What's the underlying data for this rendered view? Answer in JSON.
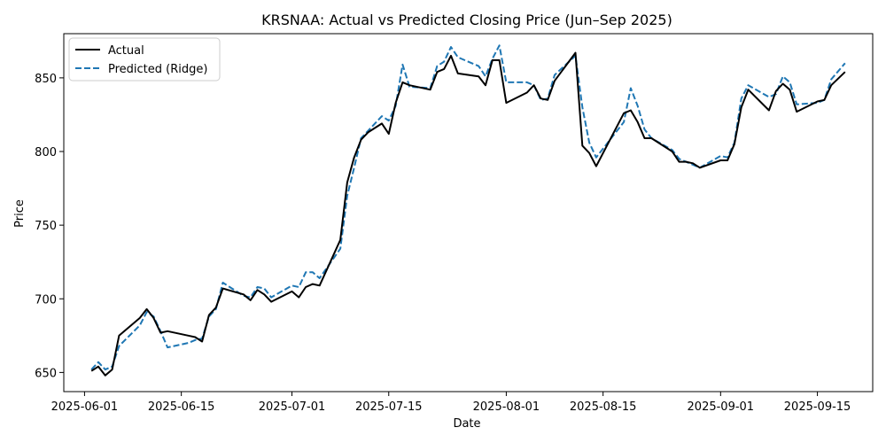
{
  "chart_data": {
    "type": "line",
    "title": "KRSNAA: Actual vs Predicted Closing Price (Jun–Sep 2025)",
    "xlabel": "Date",
    "ylabel": "Price",
    "x_range": [
      "2025-05-29",
      "2025-09-23"
    ],
    "ylim": [
      637,
      880
    ],
    "x_ticks": [
      "2025-06-01",
      "2025-06-15",
      "2025-07-01",
      "2025-07-15",
      "2025-08-01",
      "2025-08-15",
      "2025-09-01",
      "2025-09-15"
    ],
    "y_ticks": [
      650,
      700,
      750,
      800,
      850
    ],
    "grid": false,
    "legend_position": "top-left",
    "series": [
      {
        "name": "Actual",
        "color": "#000000",
        "style": "solid",
        "points": [
          [
            "2025-06-02",
            651
          ],
          [
            "2025-06-03",
            654
          ],
          [
            "2025-06-04",
            648
          ],
          [
            "2025-06-05",
            652
          ],
          [
            "2025-06-06",
            675
          ],
          [
            "2025-06-09",
            687
          ],
          [
            "2025-06-10",
            693
          ],
          [
            "2025-06-11",
            687
          ],
          [
            "2025-06-12",
            677
          ],
          [
            "2025-06-13",
            678
          ],
          [
            "2025-06-16",
            675
          ],
          [
            "2025-06-17",
            674
          ],
          [
            "2025-06-18",
            671
          ],
          [
            "2025-06-19",
            689
          ],
          [
            "2025-06-20",
            694
          ],
          [
            "2025-06-21",
            707
          ],
          [
            "2025-06-24",
            703
          ],
          [
            "2025-06-25",
            699
          ],
          [
            "2025-06-26",
            706
          ],
          [
            "2025-06-27",
            703
          ],
          [
            "2025-06-28",
            698
          ],
          [
            "2025-07-01",
            705
          ],
          [
            "2025-07-02",
            701
          ],
          [
            "2025-07-03",
            708
          ],
          [
            "2025-07-04",
            710
          ],
          [
            "2025-07-05",
            709
          ],
          [
            "2025-07-08",
            740
          ],
          [
            "2025-07-09",
            779
          ],
          [
            "2025-07-10",
            796
          ],
          [
            "2025-07-11",
            808
          ],
          [
            "2025-07-12",
            813
          ],
          [
            "2025-07-14",
            819
          ],
          [
            "2025-07-15",
            812
          ],
          [
            "2025-07-16",
            833
          ],
          [
            "2025-07-17",
            847
          ],
          [
            "2025-07-18",
            845
          ],
          [
            "2025-07-21",
            842
          ],
          [
            "2025-07-22",
            854
          ],
          [
            "2025-07-23",
            856
          ],
          [
            "2025-07-24",
            865
          ],
          [
            "2025-07-25",
            853
          ],
          [
            "2025-07-28",
            851
          ],
          [
            "2025-07-29",
            845
          ],
          [
            "2025-07-30",
            862
          ],
          [
            "2025-07-31",
            862
          ],
          [
            "2025-08-01",
            833
          ],
          [
            "2025-08-04",
            840
          ],
          [
            "2025-08-05",
            845
          ],
          [
            "2025-08-06",
            836
          ],
          [
            "2025-08-07",
            835
          ],
          [
            "2025-08-08",
            848
          ],
          [
            "2025-08-11",
            867
          ],
          [
            "2025-08-12",
            804
          ],
          [
            "2025-08-13",
            799
          ],
          [
            "2025-08-14",
            790
          ],
          [
            "2025-08-18",
            826
          ],
          [
            "2025-08-19",
            828
          ],
          [
            "2025-08-20",
            820
          ],
          [
            "2025-08-21",
            809
          ],
          [
            "2025-08-22",
            809
          ],
          [
            "2025-08-25",
            800
          ],
          [
            "2025-08-26",
            793
          ],
          [
            "2025-08-27",
            793
          ],
          [
            "2025-08-28",
            792
          ],
          [
            "2025-08-29",
            789
          ],
          [
            "2025-09-01",
            794
          ],
          [
            "2025-09-02",
            794
          ],
          [
            "2025-09-03",
            805
          ],
          [
            "2025-09-04",
            830
          ],
          [
            "2025-09-05",
            842
          ],
          [
            "2025-09-08",
            828
          ],
          [
            "2025-09-09",
            841
          ],
          [
            "2025-09-10",
            846
          ],
          [
            "2025-09-11",
            842
          ],
          [
            "2025-09-12",
            827
          ],
          [
            "2025-09-15",
            834
          ],
          [
            "2025-09-16",
            835
          ],
          [
            "2025-09-17",
            845
          ],
          [
            "2025-09-19",
            854
          ]
        ]
      },
      {
        "name": "Predicted (Ridge)",
        "color": "#1f77b4",
        "style": "dashed",
        "points": [
          [
            "2025-06-02",
            652
          ],
          [
            "2025-06-03",
            657
          ],
          [
            "2025-06-04",
            652
          ],
          [
            "2025-06-05",
            654
          ],
          [
            "2025-06-06",
            668
          ],
          [
            "2025-06-09",
            682
          ],
          [
            "2025-06-10",
            691
          ],
          [
            "2025-06-11",
            688
          ],
          [
            "2025-06-12",
            678
          ],
          [
            "2025-06-13",
            667
          ],
          [
            "2025-06-16",
            670
          ],
          [
            "2025-06-17",
            672
          ],
          [
            "2025-06-18",
            673
          ],
          [
            "2025-06-19",
            688
          ],
          [
            "2025-06-20",
            693
          ],
          [
            "2025-06-21",
            711
          ],
          [
            "2025-06-24",
            702
          ],
          [
            "2025-06-25",
            701
          ],
          [
            "2025-06-26",
            708
          ],
          [
            "2025-06-27",
            707
          ],
          [
            "2025-06-28",
            701
          ],
          [
            "2025-07-01",
            709
          ],
          [
            "2025-07-02",
            708
          ],
          [
            "2025-07-03",
            718
          ],
          [
            "2025-07-04",
            718
          ],
          [
            "2025-07-05",
            714
          ],
          [
            "2025-07-08",
            734
          ],
          [
            "2025-07-09",
            770
          ],
          [
            "2025-07-10",
            789
          ],
          [
            "2025-07-11",
            809
          ],
          [
            "2025-07-12",
            814
          ],
          [
            "2025-07-14",
            824
          ],
          [
            "2025-07-15",
            821
          ],
          [
            "2025-07-16",
            831
          ],
          [
            "2025-07-17",
            859
          ],
          [
            "2025-07-18",
            844
          ],
          [
            "2025-07-21",
            843
          ],
          [
            "2025-07-22",
            858
          ],
          [
            "2025-07-23",
            861
          ],
          [
            "2025-07-24",
            871
          ],
          [
            "2025-07-25",
            864
          ],
          [
            "2025-07-28",
            858
          ],
          [
            "2025-07-29",
            851
          ],
          [
            "2025-07-30",
            863
          ],
          [
            "2025-07-31",
            872
          ],
          [
            "2025-08-01",
            847
          ],
          [
            "2025-08-04",
            847
          ],
          [
            "2025-08-05",
            845
          ],
          [
            "2025-08-06",
            835
          ],
          [
            "2025-08-07",
            836
          ],
          [
            "2025-08-08",
            852
          ],
          [
            "2025-08-11",
            865
          ],
          [
            "2025-08-12",
            830
          ],
          [
            "2025-08-13",
            806
          ],
          [
            "2025-08-14",
            796
          ],
          [
            "2025-08-18",
            820
          ],
          [
            "2025-08-19",
            843
          ],
          [
            "2025-08-20",
            831
          ],
          [
            "2025-08-21",
            815
          ],
          [
            "2025-08-22",
            809
          ],
          [
            "2025-08-25",
            801
          ],
          [
            "2025-08-26",
            795
          ],
          [
            "2025-08-27",
            793
          ],
          [
            "2025-08-28",
            791
          ],
          [
            "2025-08-29",
            789
          ],
          [
            "2025-09-01",
            797
          ],
          [
            "2025-09-02",
            796
          ],
          [
            "2025-09-03",
            806
          ],
          [
            "2025-09-04",
            836
          ],
          [
            "2025-09-05",
            845
          ],
          [
            "2025-09-08",
            837
          ],
          [
            "2025-09-09",
            839
          ],
          [
            "2025-09-10",
            851
          ],
          [
            "2025-09-11",
            847
          ],
          [
            "2025-09-12",
            832
          ],
          [
            "2025-09-15",
            833
          ],
          [
            "2025-09-16",
            835
          ],
          [
            "2025-09-17",
            849
          ],
          [
            "2025-09-19",
            860
          ]
        ]
      }
    ]
  }
}
